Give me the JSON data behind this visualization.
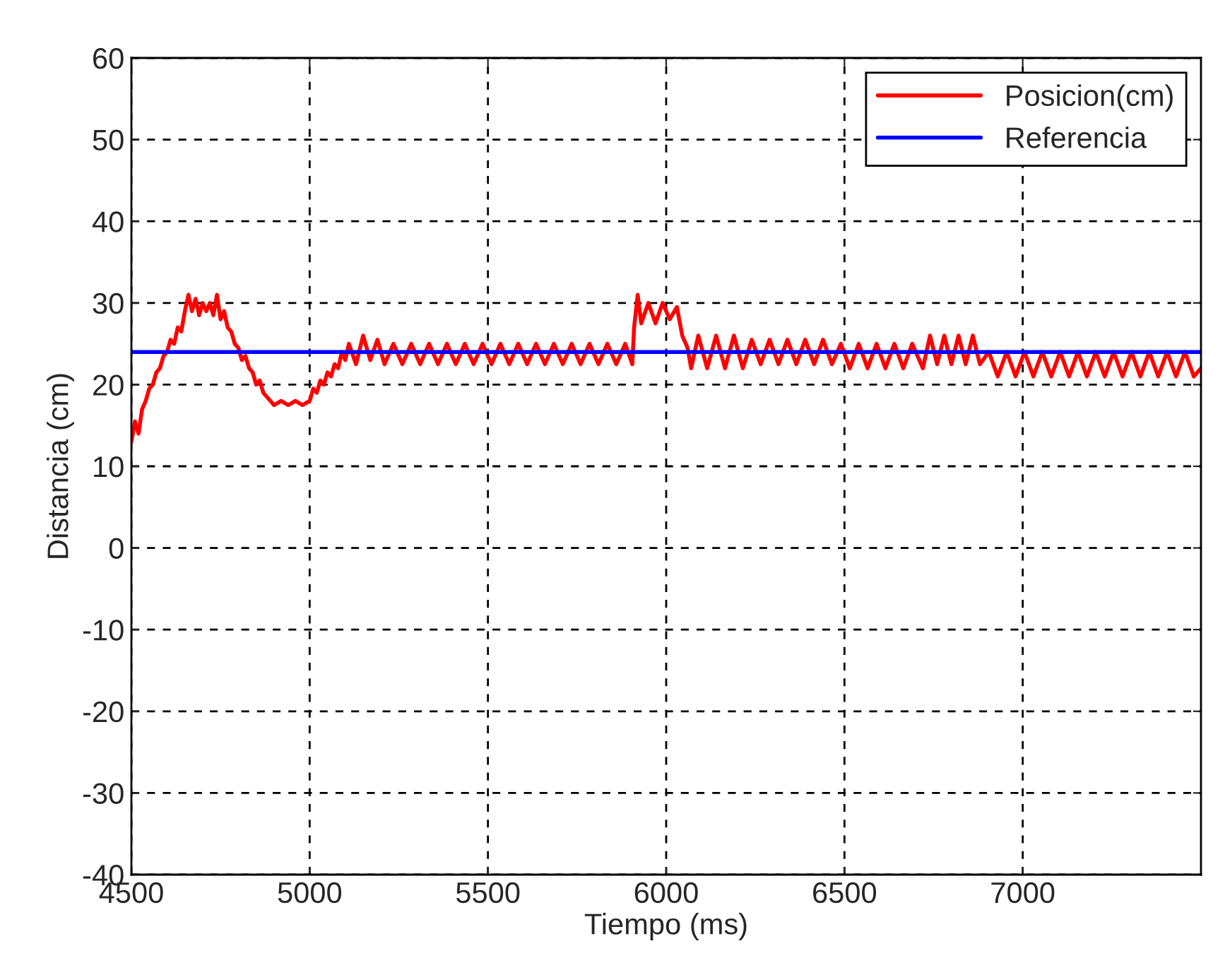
{
  "chart_data": {
    "type": "line",
    "xlabel": "Tiempo (ms)",
    "ylabel": "Distancia (cm)",
    "xlim": [
      4500,
      7500
    ],
    "ylim": [
      -40,
      60
    ],
    "xticks": [
      4500,
      5000,
      5500,
      6000,
      6500,
      7000
    ],
    "yticks": [
      -40,
      -30,
      -20,
      -10,
      0,
      10,
      20,
      30,
      40,
      50,
      60
    ],
    "grid": true,
    "legend": "top right",
    "line_style": "solid",
    "marker": "none",
    "series": [
      {
        "name": "Posicion(cm)",
        "color": "#ff0000",
        "x": [
          4500,
          4510,
          4520,
          4530,
          4540,
          4550,
          4560,
          4570,
          4580,
          4590,
          4600,
          4610,
          4620,
          4630,
          4640,
          4650,
          4660,
          4670,
          4680,
          4690,
          4700,
          4710,
          4720,
          4730,
          4740,
          4750,
          4760,
          4770,
          4780,
          4790,
          4800,
          4810,
          4820,
          4830,
          4840,
          4850,
          4860,
          4870,
          4880,
          4890,
          4900,
          4920,
          4940,
          4960,
          4980,
          5000,
          5010,
          5020,
          5030,
          5040,
          5050,
          5060,
          5070,
          5080,
          5090,
          5100,
          5110,
          5130,
          5150,
          5170,
          5190,
          5210,
          5235,
          5260,
          5285,
          5310,
          5335,
          5360,
          5385,
          5410,
          5435,
          5460,
          5485,
          5510,
          5535,
          5560,
          5585,
          5610,
          5635,
          5660,
          5685,
          5710,
          5735,
          5760,
          5785,
          5810,
          5835,
          5860,
          5885,
          5905,
          5910,
          5920,
          5930,
          5950,
          5970,
          5990,
          6010,
          6030,
          6045,
          6060,
          6070,
          6090,
          6115,
          6140,
          6165,
          6190,
          6215,
          6240,
          6265,
          6290,
          6315,
          6340,
          6365,
          6390,
          6415,
          6440,
          6465,
          6490,
          6515,
          6540,
          6565,
          6590,
          6615,
          6640,
          6665,
          6690,
          6720,
          6740,
          6760,
          6780,
          6800,
          6820,
          6840,
          6860,
          6880,
          6905,
          6930,
          6955,
          6980,
          7005,
          7030,
          7055,
          7080,
          7105,
          7130,
          7155,
          7180,
          7205,
          7230,
          7255,
          7280,
          7305,
          7330,
          7355,
          7380,
          7405,
          7430,
          7455,
          7480,
          7500
        ],
        "values": [
          13,
          15.5,
          14,
          17,
          18,
          19.5,
          20,
          21.5,
          22,
          23.5,
          24,
          25.5,
          25,
          27,
          26.5,
          29,
          31,
          29,
          30.5,
          28.5,
          30,
          29,
          30,
          28.5,
          31,
          28,
          29,
          27,
          26.5,
          25,
          24.5,
          23,
          23.5,
          22,
          21.5,
          20,
          20.5,
          19,
          18.5,
          18,
          17.5,
          18,
          17.5,
          18,
          17.5,
          18,
          19.5,
          19,
          20.5,
          20,
          21.5,
          21,
          22.5,
          22,
          24,
          23,
          25,
          22.5,
          26,
          23,
          25.5,
          22.5,
          25,
          22.5,
          25,
          22.5,
          25,
          22.5,
          25,
          22.5,
          25,
          22.5,
          25,
          22.5,
          25,
          22.5,
          25,
          22.5,
          25,
          22.5,
          25,
          22.5,
          25,
          22.5,
          25,
          22.5,
          25,
          22.5,
          25,
          22.5,
          27,
          31,
          27.5,
          30,
          27.5,
          30,
          28,
          29.5,
          26,
          24.5,
          22,
          26,
          22,
          26,
          22,
          26,
          22,
          25.5,
          22.5,
          25.5,
          22.5,
          25.5,
          22.5,
          25.5,
          22.5,
          25.5,
          22.5,
          25,
          22,
          25,
          22,
          25,
          22,
          25,
          22,
          25,
          22,
          26,
          22.5,
          26,
          22.5,
          26,
          22.5,
          26,
          22.5,
          24,
          21,
          24,
          21,
          24,
          21,
          24,
          21,
          24,
          21,
          24,
          21,
          24,
          21,
          24,
          21,
          24,
          21,
          24,
          21,
          24,
          21,
          24,
          21,
          22
        ]
      },
      {
        "name": "Referencia",
        "color": "#0000ff",
        "x": [
          4500,
          7500
        ],
        "values": [
          24,
          24
        ]
      }
    ]
  }
}
